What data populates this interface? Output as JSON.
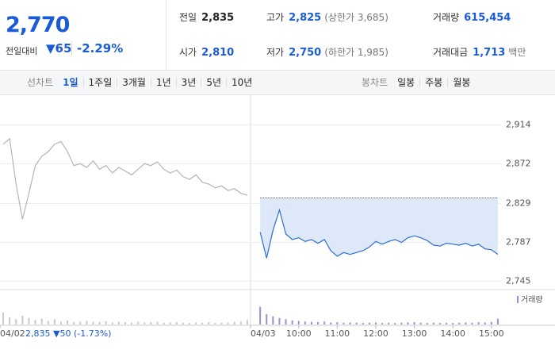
{
  "header": {
    "price": "2,770",
    "change_label": "전일대비",
    "change": "▼65",
    "change_rate": "-2.29%"
  },
  "table": {
    "rows": [
      [
        {
          "label": "전일",
          "value": "2,835"
        },
        {
          "label": "고가",
          "value": "2,825",
          "note": "(상한가 3,685)"
        },
        {
          "label": "거래량",
          "value": "615,454"
        }
      ],
      [
        {
          "label": "시가",
          "value": "2,810"
        },
        {
          "label": "저가",
          "value": "2,750",
          "note": "(하한가 1,985)"
        },
        {
          "label": "거래대금",
          "value": "1,713",
          "note": "백만"
        }
      ]
    ]
  },
  "tabs": {
    "line_label": "선차트",
    "line_tabs": [
      "1일",
      "1주일",
      "3개월",
      "1년",
      "3년",
      "5년",
      "10년"
    ],
    "candle_label": "봉차트",
    "candle_tabs": [
      "일봉",
      "주봉",
      "월봉"
    ]
  },
  "footer": {
    "prev_summary": "2,835 ▼50 (-1.73%)"
  },
  "chart_data": {
    "type": "line",
    "volume_legend": "거래량",
    "xlim": [
      -405,
      459
    ],
    "ylim": [
      2736,
      2946
    ],
    "vlim": [
      0,
      100
    ],
    "baseline": 2835,
    "yticks": [
      {
        "value": 2914,
        "label": "2,914"
      },
      {
        "value": 2872,
        "label": "2,872"
      },
      {
        "value": 2829,
        "label": "2,829"
      },
      {
        "value": 2787,
        "label": "2,787"
      },
      {
        "value": 2745,
        "label": "2,745"
      }
    ],
    "xticks": [
      {
        "value": -405,
        "label": "04/02"
      },
      {
        "value": -15,
        "label": "04/03"
      },
      {
        "value": 60,
        "label": "10:00"
      },
      {
        "value": 120,
        "label": "11:00"
      },
      {
        "value": 180,
        "label": "12:00"
      },
      {
        "value": 240,
        "label": "13:00"
      },
      {
        "value": 300,
        "label": "14:00"
      },
      {
        "value": 360,
        "label": "15:00"
      }
    ],
    "series": [
      {
        "color": "#b4b4b4",
        "x": [
          -400,
          -390,
          -380,
          -370,
          -360,
          -350,
          -340,
          -330,
          -320,
          -310,
          -300,
          -290,
          -280,
          -270,
          -260,
          -250,
          -240,
          -230,
          -220,
          -210,
          -200,
          -190,
          -180,
          -170,
          -160,
          -150,
          -140,
          -130,
          -120,
          -110,
          -100,
          -90,
          -80,
          -70,
          -60,
          -50,
          -40,
          -30,
          -20
        ],
        "values": [
          2893,
          2899,
          2850,
          2812,
          2840,
          2870,
          2880,
          2885,
          2893,
          2896,
          2885,
          2870,
          2872,
          2868,
          2875,
          2866,
          2870,
          2862,
          2868,
          2864,
          2860,
          2866,
          2872,
          2870,
          2874,
          2866,
          2862,
          2865,
          2858,
          2855,
          2860,
          2852,
          2850,
          2846,
          2848,
          2843,
          2845,
          2840,
          2838
        ],
        "volume": [
          40,
          25,
          18,
          30,
          22,
          15,
          20,
          12,
          18,
          10,
          14,
          8,
          10,
          12,
          9,
          8,
          11,
          7,
          9,
          8,
          6,
          10,
          7,
          8,
          9,
          6,
          7,
          8,
          6,
          5,
          7,
          6,
          8,
          5,
          6,
          7,
          9,
          10,
          15
        ]
      },
      {
        "color": "#2d6ed6",
        "fill": "#dde9f8",
        "x": [
          0,
          10,
          20,
          30,
          40,
          50,
          60,
          70,
          80,
          90,
          100,
          110,
          120,
          130,
          140,
          150,
          160,
          170,
          180,
          190,
          200,
          210,
          220,
          230,
          240,
          250,
          260,
          270,
          280,
          290,
          300,
          310,
          320,
          330,
          340,
          350,
          360,
          370
        ],
        "values": [
          2798,
          2770,
          2800,
          2822,
          2796,
          2790,
          2792,
          2788,
          2790,
          2786,
          2790,
          2778,
          2772,
          2776,
          2774,
          2776,
          2778,
          2782,
          2788,
          2785,
          2788,
          2790,
          2787,
          2792,
          2794,
          2792,
          2789,
          2784,
          2783,
          2786,
          2785,
          2784,
          2786,
          2783,
          2785,
          2780,
          2779,
          2774
        ],
        "volume": [
          60,
          35,
          28,
          22,
          18,
          14,
          12,
          10,
          9,
          8,
          10,
          7,
          8,
          6,
          7,
          6,
          5,
          6,
          7,
          5,
          6,
          5,
          6,
          7,
          8,
          6,
          5,
          6,
          5,
          6,
          5,
          6,
          7,
          6,
          8,
          7,
          9,
          20
        ]
      }
    ]
  }
}
